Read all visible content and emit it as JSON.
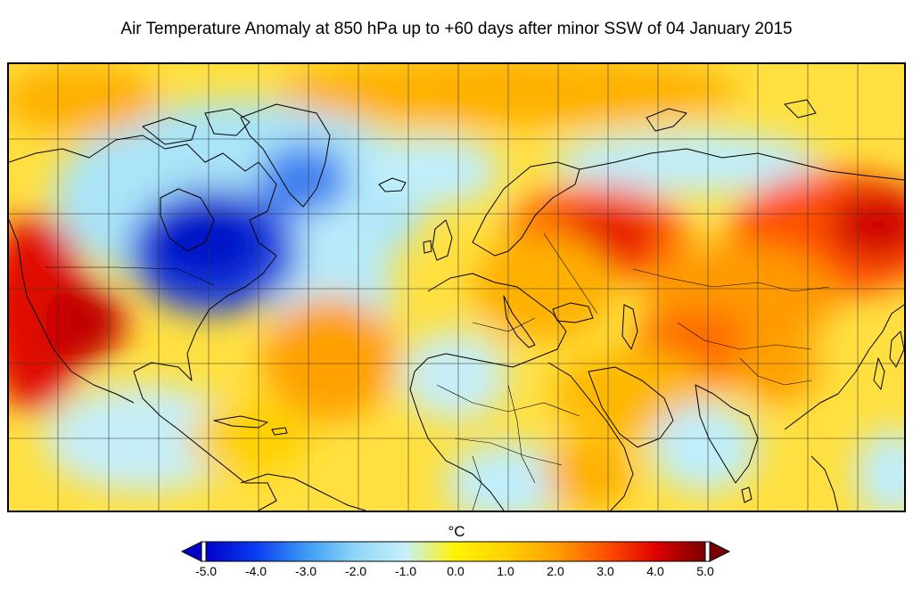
{
  "title": "Air Temperature Anomaly at 850 hPa up to +60 days after minor SSW of 04 January 2015",
  "colorbar": {
    "unit": "°C",
    "min": -5.0,
    "max": 5.0,
    "ticks": [
      "-5.0",
      "-4.0",
      "-3.0",
      "-2.0",
      "-1.0",
      "0.0",
      "1.0",
      "2.0",
      "3.0",
      "4.0",
      "5.0"
    ],
    "stops": [
      {
        "value": -5.0,
        "color": "#0000c8"
      },
      {
        "value": -4.0,
        "color": "#0a3cf0"
      },
      {
        "value": -3.0,
        "color": "#3c9bf5"
      },
      {
        "value": -2.0,
        "color": "#8fd6f7"
      },
      {
        "value": -1.0,
        "color": "#c8f0fa"
      },
      {
        "value": 0.0,
        "color": "#fff200"
      },
      {
        "value": 1.0,
        "color": "#ffd200"
      },
      {
        "value": 2.0,
        "color": "#ffa000"
      },
      {
        "value": 3.0,
        "color": "#ff5000"
      },
      {
        "value": 4.0,
        "color": "#e00000"
      },
      {
        "value": 5.0,
        "color": "#7a0000"
      }
    ],
    "extend": "both"
  },
  "map": {
    "projection": "equirectangular",
    "region": "Northern Hemisphere mid-latitudes (North America, Atlantic, Europe, Asia)",
    "colors": {
      "ocean_ice_blue": "#bfeefc",
      "strong_cold": "#0a2ad8",
      "warm_orange": "#ff9a00",
      "hot_red": "#d40000",
      "neutral_yellow": "#ffec40"
    }
  }
}
